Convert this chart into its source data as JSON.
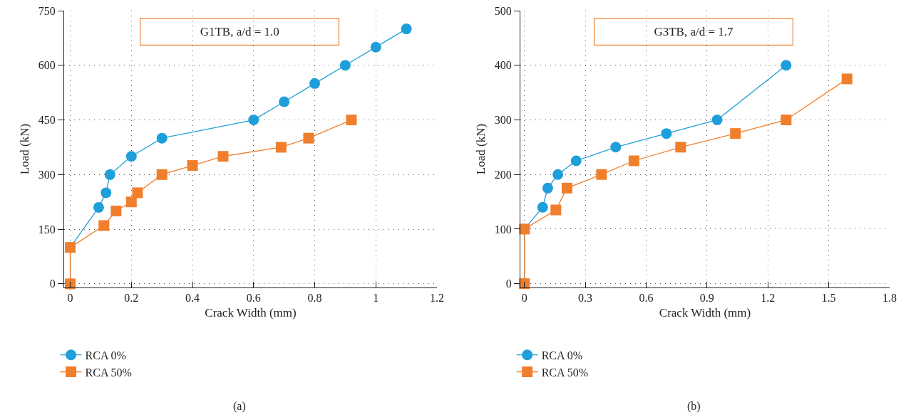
{
  "chart_data": [
    {
      "type": "line",
      "xlabel": "Crack Width (mm)",
      "ylabel": "Load (kN)",
      "xlim": [
        -0.02,
        1.2
      ],
      "xticks": [
        0,
        0.2,
        0.4,
        0.6,
        0.8,
        1,
        1.2
      ],
      "ylim": [
        -10,
        750
      ],
      "yticks": [
        0,
        150,
        300,
        450,
        600,
        750
      ],
      "grid": true,
      "legend": "bottom left",
      "line_style": "solid",
      "annotations": [
        "G1TB, a/d = 1.0",
        "(a)"
      ],
      "series": [
        {
          "name": "RCA 0%",
          "color": "#1e9fd9",
          "marker": "circle",
          "x": [
            0,
            0,
            0.093,
            0.117,
            0.13,
            0.2,
            0.3,
            0.6,
            0.7,
            0.8,
            0.9,
            1.0,
            1.1
          ],
          "values": [
            0,
            100,
            210,
            250,
            300,
            350,
            400,
            450,
            500,
            550,
            600,
            650,
            700
          ]
        },
        {
          "name": "RCA 50%",
          "color": "#f07f2d",
          "marker": "square",
          "x": [
            0,
            0,
            0.11,
            0.15,
            0.2,
            0.22,
            0.3,
            0.4,
            0.5,
            0.69,
            0.78,
            0.92
          ],
          "values": [
            0,
            100,
            160,
            200,
            225,
            250,
            300,
            325,
            350,
            375,
            400,
            450
          ]
        }
      ]
    },
    {
      "type": "line",
      "xlabel": "Crack Width (mm)",
      "ylabel": "Load (kN)",
      "xlim": [
        -0.02,
        1.8
      ],
      "xticks": [
        0,
        0.3,
        0.6,
        0.9,
        1.2,
        1.5,
        1.8
      ],
      "ylim": [
        -7,
        500
      ],
      "yticks": [
        0,
        100,
        200,
        300,
        400,
        500
      ],
      "grid": true,
      "legend": "bottom left",
      "line_style": "solid",
      "annotations": [
        "G3TB, a/d = 1.7",
        "(b)"
      ],
      "series": [
        {
          "name": "RCA 0%",
          "color": "#1e9fd9",
          "marker": "circle",
          "x": [
            0,
            0,
            0.09,
            0.115,
            0.165,
            0.255,
            0.45,
            0.7,
            0.95,
            1.29
          ],
          "values": [
            0,
            100,
            140,
            175,
            200,
            225,
            250,
            275,
            300,
            400
          ]
        },
        {
          "name": "RCA 50%",
          "color": "#f07f2d",
          "marker": "square",
          "x": [
            0,
            0,
            0.155,
            0.21,
            0.38,
            0.54,
            0.77,
            1.04,
            1.29,
            1.59
          ],
          "values": [
            0,
            100,
            135,
            175,
            200,
            225,
            250,
            275,
            300,
            375
          ]
        }
      ]
    }
  ]
}
